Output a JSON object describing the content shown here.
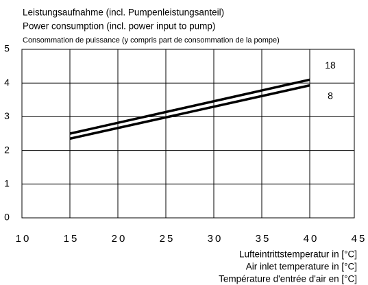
{
  "chart_data": {
    "type": "line",
    "title_lines": [
      "Leistungsaufnahme (incl. Pumpenleistungsanteil)",
      "Power consumption (incl. power input to pump)",
      "Consommation de puissance (y compris part de consommation de la pompe)"
    ],
    "x_label_lines": [
      "Lufteintrittstemperatur in [°C]",
      "Air inlet temperature in [°C]",
      "Température d'entrée d'air en [°C]"
    ],
    "x": [
      15,
      40
    ],
    "series": [
      {
        "name": "18",
        "color": "#000000",
        "values": [
          2.5,
          4.1
        ]
      },
      {
        "name": "8",
        "color": "#000000",
        "values": [
          2.35,
          3.93
        ]
      }
    ],
    "xlim": [
      10,
      45
    ],
    "xticks": [
      10,
      15,
      20,
      25,
      30,
      35,
      40,
      45
    ],
    "ylim": [
      0,
      5
    ],
    "yticks": [
      0,
      1,
      2,
      3,
      4,
      5
    ],
    "grid": true
  }
}
